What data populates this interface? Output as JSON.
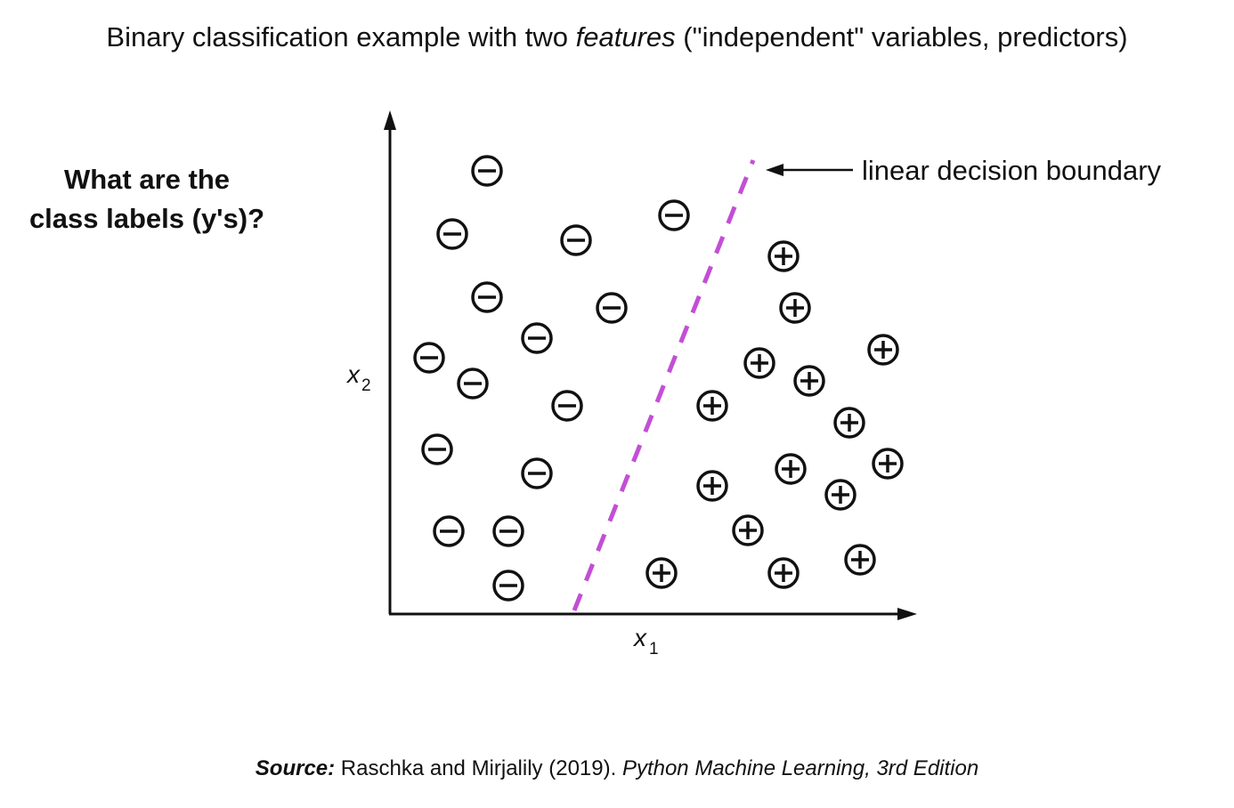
{
  "title": {
    "prefix": "Binary classification example with two ",
    "emphasis": "features",
    "suffix": " (\"independent\" variables, predictors)"
  },
  "question": {
    "line1": "What are the",
    "line2": "class labels (y's)?"
  },
  "axes": {
    "x_label": "x",
    "x_subscript": "1",
    "y_label": "x",
    "y_subscript": "2"
  },
  "boundary": {
    "label": "linear decision boundary",
    "color": "#c24fd4"
  },
  "classes": {
    "negative_symbol": "minus-circle",
    "positive_symbol": "plus-circle"
  },
  "source": {
    "label": "Source:",
    "text": " Raschka and Mirjalily (2019). ",
    "book": "Python Machine Learning, 3rd Edition"
  }
}
